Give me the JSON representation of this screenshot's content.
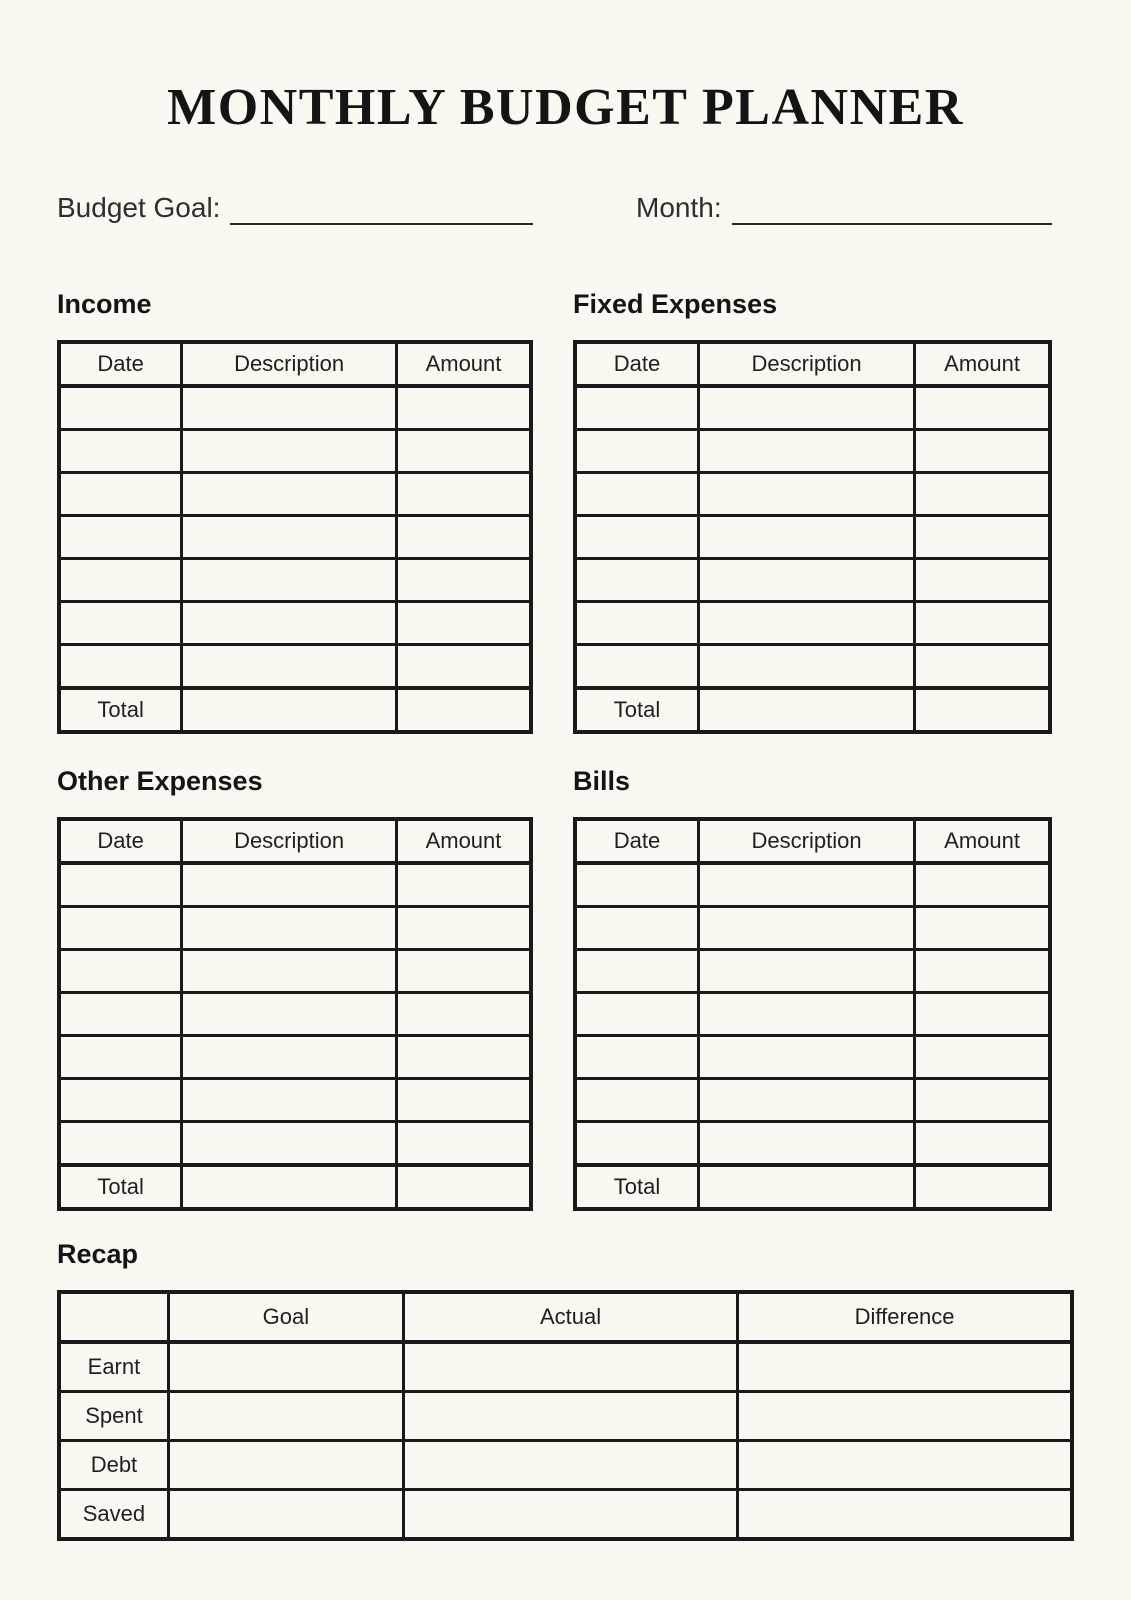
{
  "page": {
    "title": "MONTHLY BUDGET PLANNER"
  },
  "colors": {
    "background": "#FAF8F0",
    "grid_line": "#1A1A1A",
    "text": "#1F1F1F"
  },
  "fields": {
    "budget_goal_label": "Budget Goal:",
    "budget_goal_value": "",
    "month_label": "Month:",
    "month_value": ""
  },
  "sections": [
    {
      "id": "income",
      "heading": "Income",
      "columns": [
        "Date",
        "Description",
        "Amount"
      ],
      "rows": [
        [
          "",
          "",
          ""
        ],
        [
          "",
          "",
          ""
        ],
        [
          "",
          "",
          ""
        ],
        [
          "",
          "",
          ""
        ],
        [
          "",
          "",
          ""
        ],
        [
          "",
          "",
          ""
        ],
        [
          "",
          "",
          ""
        ]
      ],
      "total_label": "Total",
      "total_description": "",
      "total_amount": ""
    },
    {
      "id": "fixed_expenses",
      "heading": "Fixed Expenses",
      "columns": [
        "Date",
        "Description",
        "Amount"
      ],
      "rows": [
        [
          "",
          "",
          ""
        ],
        [
          "",
          "",
          ""
        ],
        [
          "",
          "",
          ""
        ],
        [
          "",
          "",
          ""
        ],
        [
          "",
          "",
          ""
        ],
        [
          "",
          "",
          ""
        ],
        [
          "",
          "",
          ""
        ]
      ],
      "total_label": "Total",
      "total_description": "",
      "total_amount": ""
    },
    {
      "id": "other_expenses",
      "heading": "Other Expenses",
      "columns": [
        "Date",
        "Description",
        "Amount"
      ],
      "rows": [
        [
          "",
          "",
          ""
        ],
        [
          "",
          "",
          ""
        ],
        [
          "",
          "",
          ""
        ],
        [
          "",
          "",
          ""
        ],
        [
          "",
          "",
          ""
        ],
        [
          "",
          "",
          ""
        ],
        [
          "",
          "",
          ""
        ]
      ],
      "total_label": "Total",
      "total_description": "",
      "total_amount": ""
    },
    {
      "id": "bills",
      "heading": "Bills",
      "columns": [
        "Date",
        "Description",
        "Amount"
      ],
      "rows": [
        [
          "",
          "",
          ""
        ],
        [
          "",
          "",
          ""
        ],
        [
          "",
          "",
          ""
        ],
        [
          "",
          "",
          ""
        ],
        [
          "",
          "",
          ""
        ],
        [
          "",
          "",
          ""
        ],
        [
          "",
          "",
          ""
        ]
      ],
      "total_label": "Total",
      "total_description": "",
      "total_amount": ""
    }
  ],
  "recap": {
    "heading": "Recap",
    "columns": [
      "",
      "Goal",
      "Actual",
      "Difference"
    ],
    "rows": [
      {
        "label": "Earnt",
        "goal": "",
        "actual": "",
        "difference": ""
      },
      {
        "label": "Spent",
        "goal": "",
        "actual": "",
        "difference": ""
      },
      {
        "label": "Debt",
        "goal": "",
        "actual": "",
        "difference": ""
      },
      {
        "label": "Saved",
        "goal": "",
        "actual": "",
        "difference": ""
      }
    ]
  }
}
